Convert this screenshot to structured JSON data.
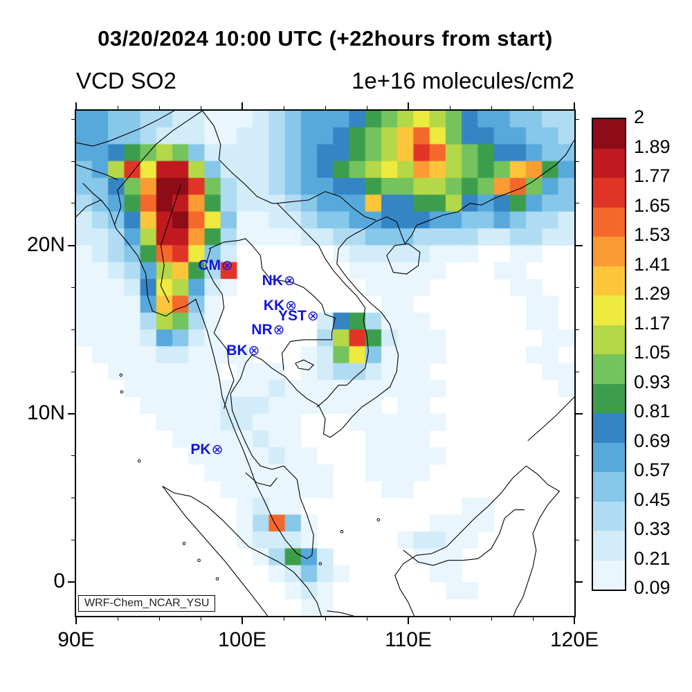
{
  "header": {
    "title": "03/20/2024 10:00 UTC (+22hours from start)",
    "subtitle_left": "VCD SO2",
    "subtitle_right": "1e+16 molecules/cm2"
  },
  "map": {
    "credit_label": "WRF-Chem_NCAR_YSU",
    "extent": {
      "lon_min": 90,
      "lon_max": 120,
      "lat_min": -2,
      "lat_max": 28
    },
    "x_axis": {
      "tick_labels": [
        {
          "label": "90E",
          "lon": 90
        },
        {
          "label": "100E",
          "lon": 100
        },
        {
          "label": "110E",
          "lon": 110
        },
        {
          "label": "120E",
          "lon": 120
        }
      ],
      "minor_tick_step_deg": 2.5
    },
    "y_axis": {
      "tick_labels": [
        {
          "label": "20N",
          "lat": 20
        },
        {
          "label": "10N",
          "lat": 10
        },
        {
          "label": "0",
          "lat": 0
        }
      ],
      "minor_tick_step_deg": 2.5
    },
    "stations": {
      "marker_symbol": "⊗",
      "color": "#1414dd",
      "items": [
        {
          "id": "CM",
          "label": "CM",
          "lon": 98.99,
          "lat": 18.79
        },
        {
          "id": "NK",
          "label": "NK",
          "lon": 102.74,
          "lat": 17.87
        },
        {
          "id": "KK",
          "label": "KK",
          "lon": 102.83,
          "lat": 16.43
        },
        {
          "id": "YST",
          "label": "YST",
          "lon": 104.15,
          "lat": 15.79
        },
        {
          "id": "NR",
          "label": "NR",
          "lon": 102.1,
          "lat": 14.97
        },
        {
          "id": "BK",
          "label": "BK",
          "lon": 100.6,
          "lat": 13.73
        },
        {
          "id": "PK",
          "label": "PK",
          "lon": 98.39,
          "lat": 7.88
        }
      ]
    }
  },
  "chart_data": {
    "type": "heatmap",
    "title": "VCD SO2",
    "units": "1e+16 molecules/cm2",
    "datetime_label": "03/20/2024 10:00 UTC (+22hours from start)",
    "model_label": "WRF-Chem_NCAR_YSU",
    "extent": {
      "lon": [
        90,
        120
      ],
      "lat": [
        -2,
        28
      ]
    },
    "colorbar": {
      "min": 0.09,
      "max": 2,
      "tick_labels_top_to_bottom": [
        "2",
        "1.89",
        "1.77",
        "1.65",
        "1.53",
        "1.41",
        "1.29",
        "1.17",
        "1.05",
        "0.93",
        "0.81",
        "0.69",
        "0.57",
        "0.45",
        "0.33",
        "0.21",
        "0.09"
      ],
      "colors_bottom_to_top": [
        "#eaf6fd",
        "#d3ecf9",
        "#b0dcf3",
        "#86c7ea",
        "#57a9db",
        "#3585c4",
        "#3c9e4d",
        "#74c35c",
        "#b4d848",
        "#eeea3e",
        "#fdc63a",
        "#fb9b33",
        "#f4682b",
        "#e03526",
        "#c01a20",
        "#8e0c18"
      ],
      "below_min_color": "#ffffff"
    },
    "grid": {
      "description": "1-degree cells, rows from lat 27.5N down to -1.5S, 31 columns lon 90E..120E; chars: '.'=below 0.09 (white), 1-9,a-g = colorbar bins 1..16 (bin width ~0.12, bin1 starts at 0.09)",
      "lon_start": 90,
      "lon_step": 1,
      "lat_start": 27.5,
      "lat_step": -1,
      "rows": [
        "554433221112345556789a986554433",
        "55443222112234556789bda86655443",
        "55678984222234566789bed98766544",
        "459eaff942223456789a9cb9878bc75",
        "4468cgge832234556678899878cd854",
        "3457dgfc7322234555b667796567544",
        "2346bfgda4112234455666554454332",
        "22359ffc73111122334443333223322",
        "12347dea42......122222111..11..",
        "112359b73e.......111111...11...",
        "11126a9521........1111.....11..",
        "11115bd41..........11.......11.",
        "111139831......2673111......11.",
        "111125421......39e72111......11",
        ".1111221111...128a41111.....11.",
        "..1111111.111.12332111.......11",
        "...11111111121111111111.......1",
        "....111112221111111.11.........",
        ".....111122111...111111........",
        "......11111211....1111.........",
        ".......11111211...11111........",
        "........11111111..1111.........",
        ".........1111111...11..........",
        "..........1211..........11.....",
        "..........13d41.......1111.....",
        "..........12221.....12211......",
        "...........13752.....111.......",
        "............12421.....11.......",
        ".............121.......11......",
        "..............11..............."
      ]
    }
  }
}
